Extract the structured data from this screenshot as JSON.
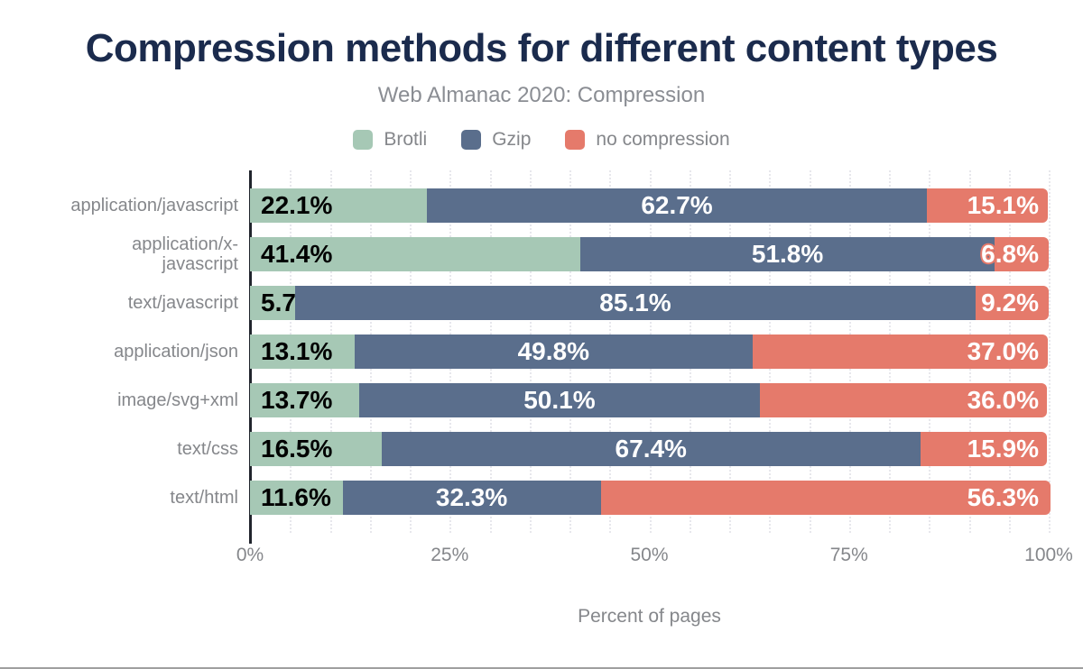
{
  "title": "Compression methods for different content types",
  "subtitle": "Web Almanac 2020: Compression",
  "legend": [
    {
      "label": "Brotli",
      "color": "#a6c8b5"
    },
    {
      "label": "Gzip",
      "color": "#5a6e8c"
    },
    {
      "label": "no compression",
      "color": "#e57a6b"
    }
  ],
  "x_axis": {
    "ticks": [
      "0%",
      "25%",
      "50%",
      "75%",
      "100%"
    ],
    "label": "Percent of pages"
  },
  "colors": {
    "title": "#1b2b4d",
    "muted_text": "#85878b",
    "axis_line": "#20242c",
    "gridline": "#e7e7ec",
    "value_label_dark": "#000000",
    "value_label_light": "#ffffff"
  },
  "chart_data": {
    "type": "bar",
    "orientation": "horizontal",
    "stacked": true,
    "title": "Compression methods for different content types",
    "subtitle": "Web Almanac 2020: Compression",
    "xlabel": "Percent of pages",
    "xlim": [
      0,
      100
    ],
    "grid": "vertical-dotted-every-5",
    "legend_position": "top-center",
    "value_suffix": "%",
    "categories": [
      "application/javascript",
      "application/x-javascript",
      "text/javascript",
      "application/json",
      "image/svg+xml",
      "text/css",
      "text/html"
    ],
    "series": [
      {
        "name": "Brotli",
        "key": "brotli",
        "color": "#a6c8b5",
        "values": [
          22.1,
          41.4,
          5.7,
          13.1,
          13.7,
          16.5,
          11.6
        ]
      },
      {
        "name": "Gzip",
        "key": "gzip",
        "color": "#5a6e8c",
        "values": [
          62.7,
          51.8,
          85.1,
          49.8,
          50.1,
          67.4,
          32.3
        ]
      },
      {
        "name": "no compression",
        "key": "no-compression",
        "color": "#e57a6b",
        "values": [
          15.1,
          6.8,
          9.2,
          37.0,
          36.0,
          15.9,
          56.3
        ]
      }
    ]
  }
}
